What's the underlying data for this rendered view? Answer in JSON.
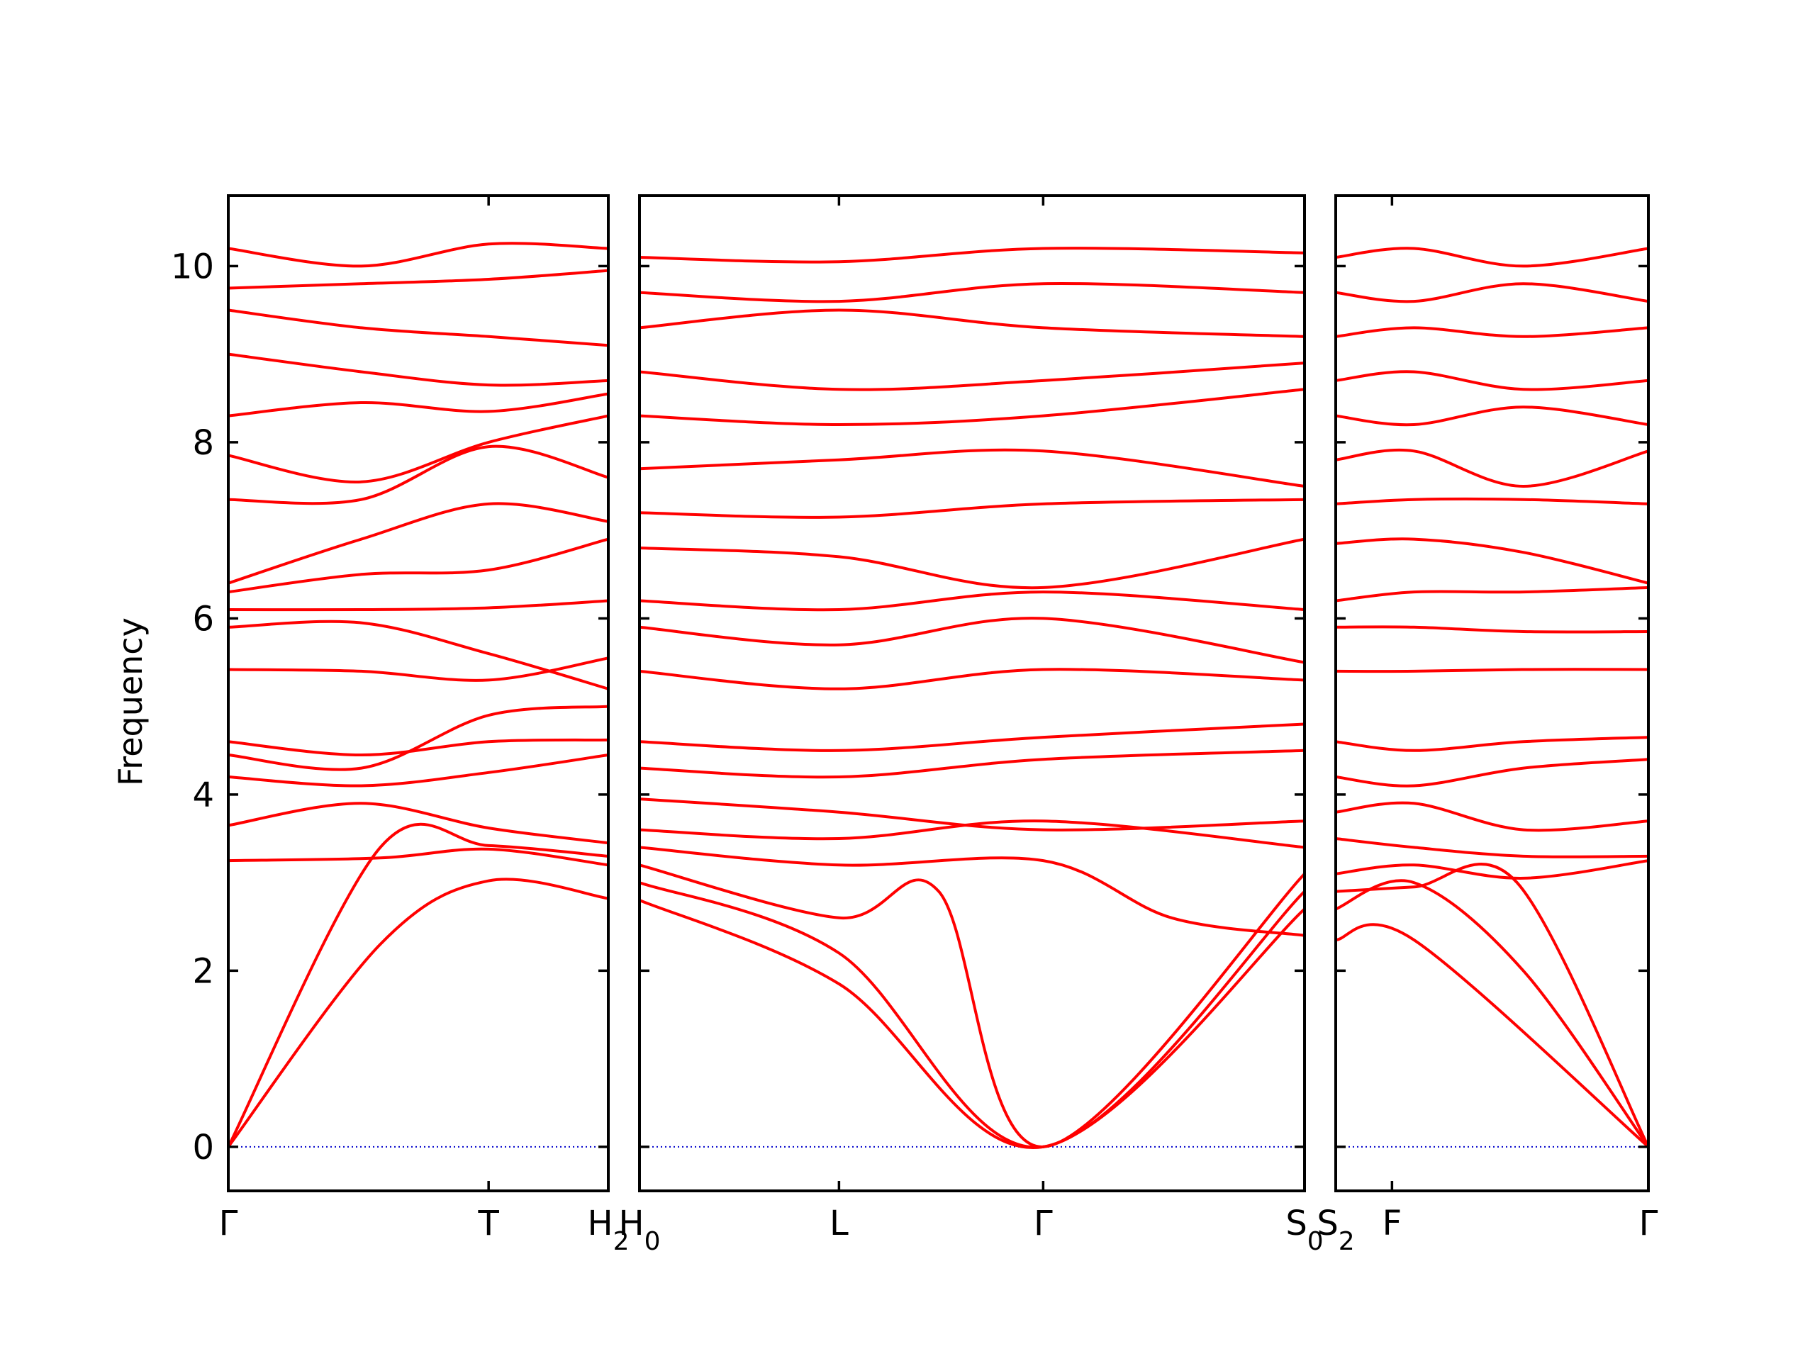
{
  "chart_data": {
    "type": "line",
    "title": "",
    "xlabel": "",
    "ylabel": "Frequency",
    "ylim": [
      -0.5,
      10.8
    ],
    "yticks": [
      "0",
      "2",
      "4",
      "6",
      "8",
      "10"
    ],
    "line_color": "#ff0000",
    "reference_line": {
      "y": 0,
      "color": "#0000cc",
      "style": "dotted"
    },
    "panels": [
      {
        "x_range": [
          0,
          1.0
        ],
        "xticks": [
          {
            "x": 0.0,
            "label": "Γ",
            "sub": ""
          },
          {
            "x": 0.685,
            "label": "T",
            "sub": ""
          },
          {
            "x": 1.0,
            "label": "H",
            "sub": "2"
          }
        ],
        "bands": [
          {
            "name": "",
            "x": [
              0,
              0.4,
              0.685,
              1.0
            ],
            "y": [
              0.0,
              2.3,
              3.02,
              2.82
            ]
          },
          {
            "name": "",
            "x": [
              0,
              0.4,
              0.685,
              1.0
            ],
            "y": [
              0.0,
              3.4,
              3.42,
              3.3
            ]
          },
          {
            "name": "",
            "x": [
              0,
              0.4,
              0.685,
              1.0
            ],
            "y": [
              3.25,
              3.28,
              3.38,
              3.2
            ]
          },
          {
            "name": "",
            "x": [
              0,
              0.35,
              0.685,
              1.0
            ],
            "y": [
              3.65,
              3.9,
              3.62,
              3.45
            ]
          },
          {
            "name": "",
            "x": [
              0,
              0.35,
              0.685,
              1.0
            ],
            "y": [
              4.2,
              4.1,
              4.25,
              4.45
            ]
          },
          {
            "name": "",
            "x": [
              0,
              0.35,
              0.685,
              1.0
            ],
            "y": [
              4.45,
              4.3,
              4.9,
              5.0
            ]
          },
          {
            "name": "",
            "x": [
              0,
              0.35,
              0.685,
              1.0
            ],
            "y": [
              4.6,
              4.45,
              4.6,
              4.62
            ]
          },
          {
            "name": "",
            "x": [
              0,
              0.35,
              0.685,
              1.0
            ],
            "y": [
              5.42,
              5.4,
              5.3,
              5.55
            ]
          },
          {
            "name": "",
            "x": [
              0,
              0.35,
              0.685,
              1.0
            ],
            "y": [
              5.9,
              5.95,
              5.6,
              5.2
            ]
          },
          {
            "name": "",
            "x": [
              0,
              0.35,
              0.685,
              1.0
            ],
            "y": [
              6.1,
              6.1,
              6.12,
              6.2
            ]
          },
          {
            "name": "",
            "x": [
              0,
              0.35,
              0.685,
              1.0
            ],
            "y": [
              6.3,
              6.5,
              6.55,
              6.9
            ]
          },
          {
            "name": "",
            "x": [
              0,
              0.35,
              0.685,
              1.0
            ],
            "y": [
              6.4,
              6.9,
              7.3,
              7.1
            ]
          },
          {
            "name": "",
            "x": [
              0,
              0.35,
              0.685,
              1.0
            ],
            "y": [
              7.35,
              7.35,
              7.95,
              7.6
            ]
          },
          {
            "name": "",
            "x": [
              0,
              0.35,
              0.685,
              1.0
            ],
            "y": [
              7.85,
              7.55,
              8.0,
              8.3
            ]
          },
          {
            "name": "",
            "x": [
              0,
              0.35,
              0.685,
              1.0
            ],
            "y": [
              8.3,
              8.45,
              8.35,
              8.55
            ]
          },
          {
            "name": "",
            "x": [
              0,
              0.35,
              0.685,
              1.0
            ],
            "y": [
              9.0,
              8.8,
              8.65,
              8.7
            ]
          },
          {
            "name": "",
            "x": [
              0,
              0.35,
              0.685,
              1.0
            ],
            "y": [
              9.5,
              9.3,
              9.2,
              9.1
            ]
          },
          {
            "name": "",
            "x": [
              0,
              0.35,
              0.685,
              1.0
            ],
            "y": [
              9.75,
              9.8,
              9.85,
              9.95
            ]
          },
          {
            "name": "",
            "x": [
              0,
              0.35,
              0.685,
              1.0
            ],
            "y": [
              10.2,
              10.0,
              10.25,
              10.2
            ]
          }
        ]
      },
      {
        "x_range": [
          0,
          1.0
        ],
        "xticks": [
          {
            "x": 0.0,
            "label": "H",
            "sub": "0"
          },
          {
            "x": 0.3,
            "label": "L",
            "sub": ""
          },
          {
            "x": 0.607,
            "label": "Γ",
            "sub": ""
          },
          {
            "x": 1.0,
            "label": "S",
            "sub": "0"
          }
        ],
        "bands": [
          {
            "name": "",
            "x": [
              0,
              0.3,
              0.607,
              1.0
            ],
            "y": [
              2.8,
              1.85,
              0.0,
              2.7
            ]
          },
          {
            "name": "",
            "x": [
              0,
              0.3,
              0.607,
              1.0
            ],
            "y": [
              3.0,
              2.2,
              0.0,
              2.9
            ]
          },
          {
            "name": "",
            "x": [
              0,
              0.3,
              0.45,
              0.607,
              1.0
            ],
            "y": [
              3.2,
              2.6,
              2.9,
              0.0,
              3.1
            ]
          },
          {
            "name": "",
            "x": [
              0,
              0.3,
              0.607,
              0.8,
              1.0
            ],
            "y": [
              3.4,
              3.2,
              3.25,
              2.6,
              2.4
            ]
          },
          {
            "name": "",
            "x": [
              0,
              0.3,
              0.607,
              1.0
            ],
            "y": [
              3.6,
              3.5,
              3.7,
              3.4
            ]
          },
          {
            "name": "",
            "x": [
              0,
              0.3,
              0.607,
              1.0
            ],
            "y": [
              3.95,
              3.8,
              3.6,
              3.7
            ]
          },
          {
            "name": "",
            "x": [
              0,
              0.3,
              0.607,
              1.0
            ],
            "y": [
              4.3,
              4.2,
              4.4,
              4.5
            ]
          },
          {
            "name": "",
            "x": [
              0,
              0.3,
              0.607,
              1.0
            ],
            "y": [
              4.6,
              4.5,
              4.65,
              4.8
            ]
          },
          {
            "name": "",
            "x": [
              0,
              0.3,
              0.607,
              1.0
            ],
            "y": [
              5.4,
              5.2,
              5.42,
              5.3
            ]
          },
          {
            "name": "",
            "x": [
              0,
              0.3,
              0.607,
              1.0
            ],
            "y": [
              5.9,
              5.7,
              6.0,
              5.5
            ]
          },
          {
            "name": "",
            "x": [
              0,
              0.3,
              0.607,
              1.0
            ],
            "y": [
              6.2,
              6.1,
              6.3,
              6.1
            ]
          },
          {
            "name": "",
            "x": [
              0,
              0.3,
              0.607,
              1.0
            ],
            "y": [
              6.8,
              6.7,
              6.35,
              6.9
            ]
          },
          {
            "name": "",
            "x": [
              0,
              0.3,
              0.607,
              1.0
            ],
            "y": [
              7.2,
              7.15,
              7.3,
              7.35
            ]
          },
          {
            "name": "",
            "x": [
              0,
              0.3,
              0.607,
              1.0
            ],
            "y": [
              7.7,
              7.8,
              7.9,
              7.5
            ]
          },
          {
            "name": "",
            "x": [
              0,
              0.3,
              0.607,
              1.0
            ],
            "y": [
              8.3,
              8.2,
              8.3,
              8.6
            ]
          },
          {
            "name": "",
            "x": [
              0,
              0.3,
              0.607,
              1.0
            ],
            "y": [
              8.8,
              8.6,
              8.7,
              8.9
            ]
          },
          {
            "name": "",
            "x": [
              0,
              0.3,
              0.607,
              1.0
            ],
            "y": [
              9.3,
              9.5,
              9.3,
              9.2
            ]
          },
          {
            "name": "",
            "x": [
              0,
              0.3,
              0.607,
              1.0
            ],
            "y": [
              9.7,
              9.6,
              9.8,
              9.7
            ]
          },
          {
            "name": "",
            "x": [
              0,
              0.3,
              0.607,
              1.0
            ],
            "y": [
              10.1,
              10.05,
              10.2,
              10.15
            ]
          }
        ]
      },
      {
        "x_range": [
          0,
          1.0
        ],
        "xticks": [
          {
            "x": 0.0,
            "label": "S",
            "sub": "2"
          },
          {
            "x": 0.18,
            "label": "F",
            "sub": ""
          },
          {
            "x": 1.0,
            "label": "Γ",
            "sub": ""
          }
        ],
        "bands": [
          {
            "name": "",
            "x": [
              0,
              0.25,
              1.0
            ],
            "y": [
              2.35,
              2.35,
              0.0
            ]
          },
          {
            "name": "",
            "x": [
              0,
              0.25,
              0.6,
              1.0
            ],
            "y": [
              2.7,
              3.0,
              2.0,
              0.0
            ]
          },
          {
            "name": "",
            "x": [
              0,
              0.25,
              0.58,
              1.0
            ],
            "y": [
              2.9,
              2.95,
              3.0,
              0.0
            ]
          },
          {
            "name": "",
            "x": [
              0,
              0.25,
              0.6,
              1.0
            ],
            "y": [
              3.1,
              3.2,
              3.05,
              3.25
            ]
          },
          {
            "name": "",
            "x": [
              0,
              0.25,
              0.6,
              1.0
            ],
            "y": [
              3.5,
              3.4,
              3.3,
              3.3
            ]
          },
          {
            "name": "",
            "x": [
              0,
              0.25,
              0.6,
              1.0
            ],
            "y": [
              3.8,
              3.9,
              3.6,
              3.7
            ]
          },
          {
            "name": "",
            "x": [
              0,
              0.25,
              0.6,
              1.0
            ],
            "y": [
              4.2,
              4.1,
              4.3,
              4.4
            ]
          },
          {
            "name": "",
            "x": [
              0,
              0.25,
              0.6,
              1.0
            ],
            "y": [
              4.6,
              4.5,
              4.6,
              4.65
            ]
          },
          {
            "name": "",
            "x": [
              0,
              0.25,
              0.6,
              1.0
            ],
            "y": [
              5.4,
              5.4,
              5.42,
              5.42
            ]
          },
          {
            "name": "",
            "x": [
              0,
              0.25,
              0.6,
              1.0
            ],
            "y": [
              5.9,
              5.9,
              5.85,
              5.85
            ]
          },
          {
            "name": "",
            "x": [
              0,
              0.25,
              0.6,
              1.0
            ],
            "y": [
              6.2,
              6.3,
              6.3,
              6.35
            ]
          },
          {
            "name": "",
            "x": [
              0,
              0.25,
              0.6,
              1.0
            ],
            "y": [
              6.85,
              6.9,
              6.75,
              6.4
            ]
          },
          {
            "name": "",
            "x": [
              0,
              0.25,
              0.6,
              1.0
            ],
            "y": [
              7.3,
              7.35,
              7.35,
              7.3
            ]
          },
          {
            "name": "",
            "x": [
              0,
              0.25,
              0.6,
              1.0
            ],
            "y": [
              7.8,
              7.9,
              7.5,
              7.9
            ]
          },
          {
            "name": "",
            "x": [
              0,
              0.25,
              0.6,
              1.0
            ],
            "y": [
              8.3,
              8.2,
              8.4,
              8.2
            ]
          },
          {
            "name": "",
            "x": [
              0,
              0.25,
              0.6,
              1.0
            ],
            "y": [
              8.7,
              8.8,
              8.6,
              8.7
            ]
          },
          {
            "name": "",
            "x": [
              0,
              0.25,
              0.6,
              1.0
            ],
            "y": [
              9.2,
              9.3,
              9.2,
              9.3
            ]
          },
          {
            "name": "",
            "x": [
              0,
              0.25,
              0.6,
              1.0
            ],
            "y": [
              9.7,
              9.6,
              9.8,
              9.6
            ]
          },
          {
            "name": "",
            "x": [
              0,
              0.25,
              0.6,
              1.0
            ],
            "y": [
              10.1,
              10.2,
              10.0,
              10.2
            ]
          }
        ]
      }
    ]
  }
}
